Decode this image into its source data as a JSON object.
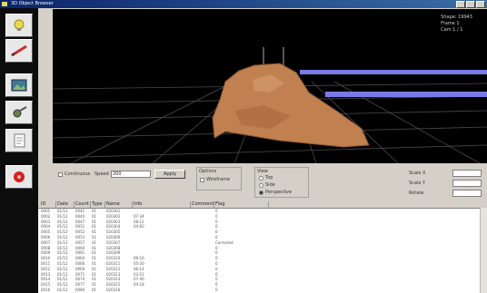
{
  "window": {
    "title": "3D Object Browser"
  },
  "toolbar": {
    "buttons": [
      {
        "name": "bulb-icon",
        "color": "#e8d84a"
      },
      {
        "name": "pen-icon",
        "color": "#c8302a"
      },
      {
        "name": "image-icon",
        "color": "#3c7a9a"
      },
      {
        "name": "gear-icon",
        "color": "#6a8040"
      },
      {
        "name": "document-icon",
        "color": "#7a7a7a"
      },
      {
        "name": "stop-icon",
        "color": "#d42020"
      }
    ]
  },
  "viewport": {
    "info": [
      "Shape: 19943",
      "Frame 1",
      "Cam 1 / 1"
    ],
    "colors": {
      "grid": "#555555",
      "object": "#c08050",
      "bars": "#7a7ae6"
    }
  },
  "controls": {
    "check_label": "Continuous",
    "speed_label": "Speed",
    "speed_value": "200",
    "apply_label": "Apply",
    "group1_title": "Options",
    "group1_option": "Wireframe",
    "group2_title": "View",
    "group2_options": [
      "Top",
      "Side",
      "Perspective"
    ],
    "right_fields": [
      {
        "label": "Scale X",
        "value": ""
      },
      {
        "label": "Scale Y",
        "value": ""
      },
      {
        "label": "Rotate",
        "value": ""
      }
    ]
  },
  "table": {
    "columns": [
      "ID",
      "Date",
      "Count",
      "Type",
      "Name",
      "Info",
      "Comment",
      "Flag"
    ],
    "rows": [
      [
        "0001",
        "01/12",
        "0041",
        "01",
        "020301",
        "",
        "",
        "0"
      ],
      [
        "0002",
        "01/12",
        "0044",
        "01",
        "020302",
        "07-34",
        "",
        "0"
      ],
      [
        "0003",
        "01/12",
        "0047",
        "01",
        "020303",
        "08-12",
        "",
        "0"
      ],
      [
        "0004",
        "01/12",
        "0051",
        "01",
        "020304",
        "04-60",
        "",
        "0"
      ],
      [
        "0005",
        "01/12",
        "0052",
        "01",
        "020305",
        "",
        "",
        "0"
      ],
      [
        "0006",
        "01/12",
        "0053",
        "01",
        "020306",
        "",
        "",
        "0"
      ],
      [
        "0007",
        "01/12",
        "0057",
        "01",
        "020307",
        "",
        "",
        "Corrected"
      ],
      [
        "0008",
        "01/12",
        "0060",
        "01",
        "020308",
        "",
        "",
        "0"
      ],
      [
        "0009",
        "01/12",
        "0061",
        "01",
        "020309",
        "",
        "",
        "0"
      ],
      [
        "0010",
        "01/12",
        "0064",
        "01",
        "020310",
        "09-16",
        "",
        "0"
      ],
      [
        "0011",
        "01/12",
        "0066",
        "01",
        "020311",
        "05-20",
        "",
        "0"
      ],
      [
        "0012",
        "01/12",
        "0069",
        "01",
        "020312",
        "06-14",
        "",
        "0"
      ],
      [
        "0013",
        "01/12",
        "0071",
        "01",
        "020313",
        "03-51",
        "",
        "0"
      ],
      [
        "0014",
        "01/12",
        "0074",
        "01",
        "020314",
        "07-40",
        "",
        "0"
      ],
      [
        "0015",
        "01/12",
        "0077",
        "01",
        "020315",
        "04-18",
        "",
        "0"
      ],
      [
        "0016",
        "01/12",
        "0080",
        "01",
        "020316",
        "",
        "",
        "0"
      ]
    ]
  }
}
